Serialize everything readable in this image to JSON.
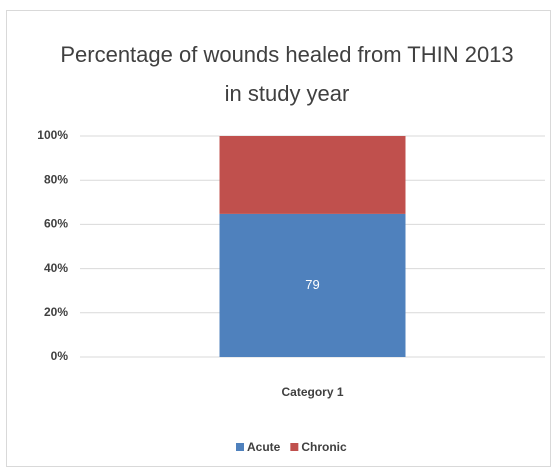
{
  "chart_data": {
    "type": "bar",
    "stacking": "percent",
    "title": "Percentage of wounds healed from THIN 2013",
    "subtitle": "in study year",
    "categories": [
      "Category 1"
    ],
    "series": [
      {
        "name": "Acute",
        "color": "#4f81bd",
        "values": [
          79
        ],
        "value_labels": [
          "79"
        ]
      },
      {
        "name": "Chronic",
        "color": "#c0504d",
        "values": [
          43
        ]
      }
    ],
    "ylim": [
      0,
      100
    ],
    "yticks": [
      {
        "value": 0,
        "label": "0%"
      },
      {
        "value": 20,
        "label": "20%"
      },
      {
        "value": 40,
        "label": "40%"
      },
      {
        "value": 60,
        "label": "60%"
      },
      {
        "value": 80,
        "label": "80%"
      },
      {
        "value": 100,
        "label": "100%"
      }
    ],
    "grid": true,
    "legend": "bottom"
  }
}
